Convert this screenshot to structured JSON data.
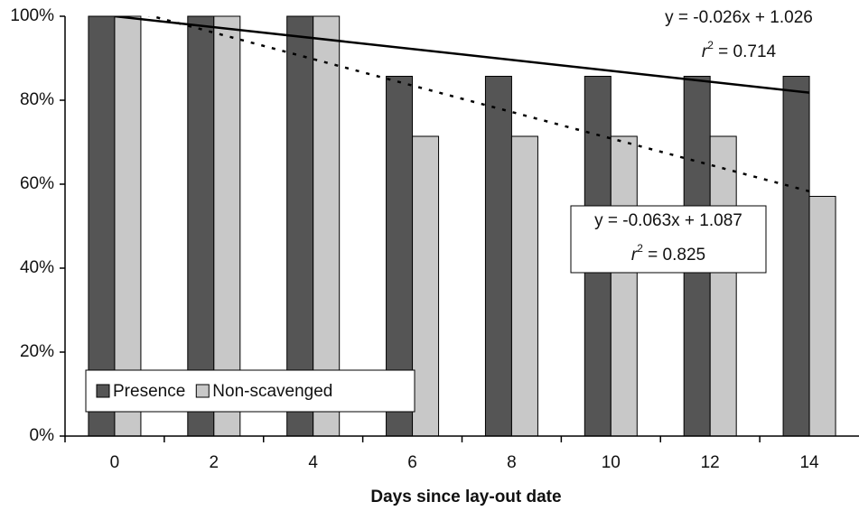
{
  "chart_data": {
    "type": "bar",
    "x_label": "Days since lay-out date",
    "categories": [
      "0",
      "2",
      "4",
      "6",
      "8",
      "10",
      "12",
      "14"
    ],
    "series": [
      {
        "name": "Presence",
        "color": "#555555",
        "values": [
          100,
          100,
          100,
          85.7,
          85.7,
          85.7,
          85.7,
          85.7
        ]
      },
      {
        "name": "Non-scavenged",
        "color": "#c8c8c8",
        "values": [
          100,
          100,
          100,
          71.4,
          71.4,
          71.4,
          71.4,
          57.1
        ]
      }
    ],
    "ylim": [
      0,
      100
    ],
    "yticks": [
      {
        "value": 0,
        "label": "0%"
      },
      {
        "value": 20,
        "label": "20%"
      },
      {
        "value": 40,
        "label": "40%"
      },
      {
        "value": 60,
        "label": "60%"
      },
      {
        "value": 80,
        "label": "80%"
      },
      {
        "value": 100,
        "label": "100%"
      }
    ],
    "trendlines": [
      {
        "equation": "y = -0.026x + 1.026",
        "r2_symbol": "r",
        "r2_power": "2",
        "r2_text": " = 0.714",
        "values": [
          100,
          81.8
        ],
        "style": "solid",
        "boxed": false
      },
      {
        "equation": "y = -0.063x + 1.087",
        "r2_symbol": "r",
        "r2_power": "2",
        "r2_text": " = 0.825",
        "values": [
          102.4,
          58.3
        ],
        "style": "dotted",
        "boxed": true
      }
    ]
  }
}
